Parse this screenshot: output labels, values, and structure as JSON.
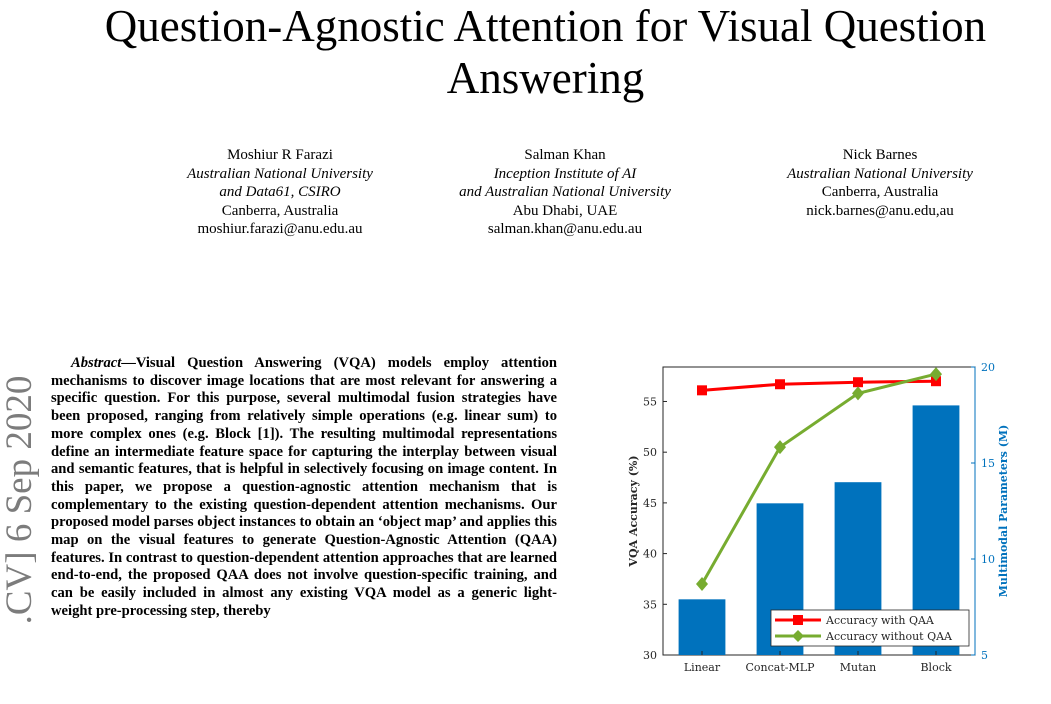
{
  "paper": {
    "title": "Question-Agnostic Attention for Visual Question Answering",
    "authors": [
      {
        "name": "Moshiur R Farazi",
        "affiliation_1": "Australian National University",
        "affiliation_2": "and Data61, CSIRO",
        "location": "Canberra, Australia",
        "email": "moshiur.farazi@anu.edu.au"
      },
      {
        "name": "Salman Khan",
        "affiliation_1": "Inception Institute of AI",
        "affiliation_2": "and Australian National University",
        "location": "Abu Dhabi, UAE",
        "email": "salman.khan@anu.edu.au"
      },
      {
        "name": "Nick Barnes",
        "affiliation_1": "Australian National University",
        "affiliation_2": "",
        "location": "Canberra, Australia",
        "email": "nick.barnes@anu.edu,au"
      }
    ],
    "arxiv_stamp": ".CV]  6 Sep 2020",
    "abstract_lead": "Abstract",
    "abstract_body": "—Visual Question Answering (VQA) models employ attention mechanisms to discover image locations that are most relevant for answering a specific question. For this purpose, several multimodal fusion strategies have been proposed, ranging from relatively simple operations (e.g. linear sum) to more complex ones (e.g. Block [1]). The resulting multimodal representations define an intermediate feature space for capturing the interplay between visual and semantic features, that is helpful in selectively focusing on image content. In this paper, we propose a question-agnostic attention mechanism that is complementary to the existing question-dependent attention mechanisms. Our proposed model parses object instances to obtain an ‘object map’ and applies this map on the visual features to generate Question-Agnostic Attention (QAA) features. In contrast to question-dependent attention approaches that are learned end-to-end, the proposed QAA does not involve question-specific training, and can be easily included in almost any existing VQA model as a generic light-weight pre-processing step, thereby"
  },
  "colors": {
    "bar": "#0072bd",
    "line_with": "#ff0000",
    "line_without": "#77ac30",
    "right_axis": "#0072bd"
  },
  "chart_data": {
    "type": "bar",
    "categories": [
      "Linear",
      "Concat-MLP",
      "Mutan",
      "Block"
    ],
    "bar_series": {
      "values": [
        7.9,
        12.9,
        14.0,
        18.0
      ],
      "axis": "right"
    },
    "series": [
      {
        "name": "Accuracy with QAA",
        "type": "line",
        "marker": "square",
        "axis": "left",
        "values": [
          56.1,
          56.7,
          56.9,
          57.0
        ]
      },
      {
        "name": "Accuracy without QAA",
        "type": "line",
        "marker": "diamond",
        "axis": "left",
        "values": [
          37.0,
          50.5,
          55.8,
          57.7
        ]
      }
    ],
    "ylabel": "VQA Accuracy (%)",
    "ylabel_right": "Multimodal Parameters (M)",
    "ylim": [
      30,
      58.4
    ],
    "ylim_right": [
      5,
      20
    ],
    "yticks": [
      30,
      35,
      40,
      45,
      50,
      55
    ],
    "yticks_right": [
      5,
      10,
      15,
      20
    ],
    "legend": "bottom-right",
    "grid": false
  }
}
